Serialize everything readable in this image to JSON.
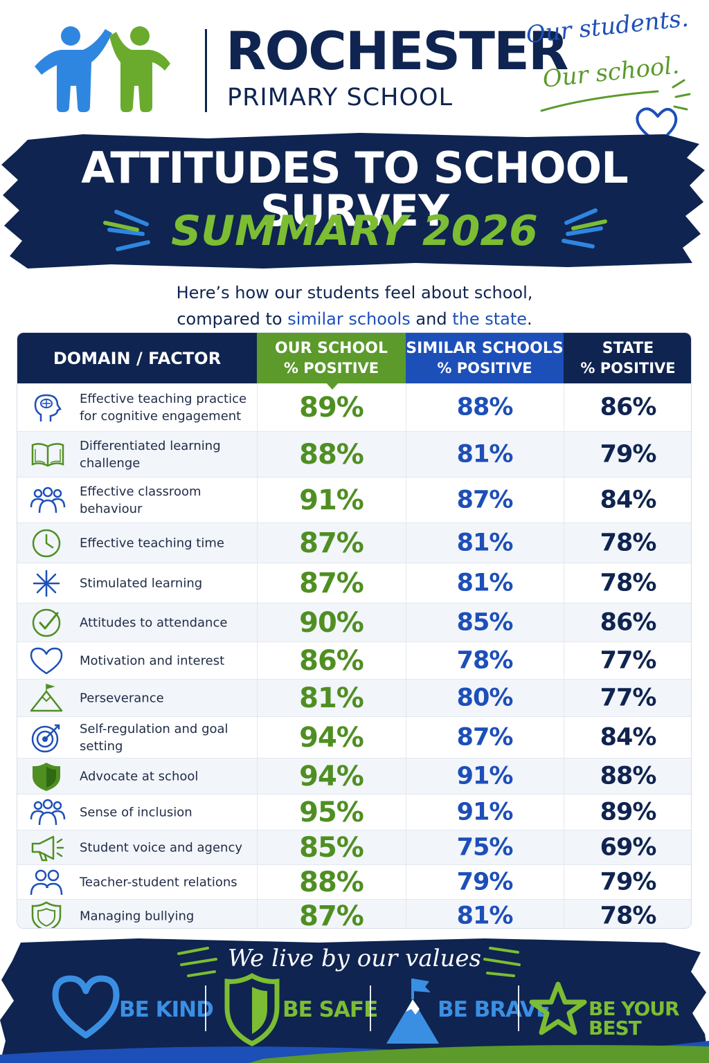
{
  "header": {
    "school_name": "ROCHESTER",
    "school_subtitle": "PRIMARY SCHOOL",
    "tagline_line1": "Our students.",
    "tagline_line2": "Our school."
  },
  "title": {
    "main": "ATTITUDES TO SCHOOL SURVEY",
    "sub": "SUMMARY 2026"
  },
  "intro": {
    "line1": "Here’s how our students feel about school,",
    "line2_prefix": "compared to ",
    "line2_hl1": "similar schools",
    "line2_mid": " and ",
    "line2_hl2": "the state",
    "line2_suffix": "."
  },
  "table": {
    "headers": {
      "domain": "DOMAIN / FACTOR",
      "ours_l1": "OUR SCHOOL",
      "ours_l2": "% POSITIVE",
      "similar_l1": "SIMILAR SCHOOLS",
      "similar_l2": "% POSITIVE",
      "state_l1": "STATE",
      "state_l2": "% POSITIVE"
    },
    "rows": [
      {
        "label": "Effective teaching practice for cognitive engagement",
        "icon": "head-brain-icon",
        "ours": "89%",
        "similar": "88%",
        "state": "86%"
      },
      {
        "label": "Differentiated learning challenge",
        "icon": "open-book-icon",
        "ours": "88%",
        "similar": "81%",
        "state": "79%"
      },
      {
        "label": "Effective classroom behaviour",
        "icon": "group-people-icon",
        "ours": "91%",
        "similar": "87%",
        "state": "84%"
      },
      {
        "label": "Effective teaching time",
        "icon": "clock-icon",
        "ours": "87%",
        "similar": "81%",
        "state": "78%"
      },
      {
        "label": "Stimulated learning",
        "icon": "sparkle-icon",
        "ours": "87%",
        "similar": "81%",
        "state": "78%"
      },
      {
        "label": "Attitudes to attendance",
        "icon": "check-circle-icon",
        "ours": "90%",
        "similar": "85%",
        "state": "86%"
      },
      {
        "label": "Motivation and interest",
        "icon": "heart-icon",
        "ours": "86%",
        "similar": "78%",
        "state": "77%"
      },
      {
        "label": "Perseverance",
        "icon": "mountain-flag-icon",
        "ours": "81%",
        "similar": "80%",
        "state": "77%"
      },
      {
        "label": "Self-regulation and goal setting",
        "icon": "target-icon",
        "ours": "94%",
        "similar": "87%",
        "state": "84%"
      },
      {
        "label": "Advocate at school",
        "icon": "shield-icon",
        "ours": "94%",
        "similar": "91%",
        "state": "88%"
      },
      {
        "label": "Sense of inclusion",
        "icon": "group-people-icon",
        "ours": "95%",
        "similar": "91%",
        "state": "89%"
      },
      {
        "label": "Student voice and agency",
        "icon": "megaphone-icon",
        "ours": "85%",
        "similar": "75%",
        "state": "69%"
      },
      {
        "label": "Teacher-student relations",
        "icon": "two-people-icon",
        "ours": "88%",
        "similar": "79%",
        "state": "79%"
      },
      {
        "label": "Managing bullying",
        "icon": "shield-outline-icon",
        "ours": "87%",
        "similar": "81%",
        "state": "78%"
      }
    ]
  },
  "values": {
    "title": "We live by our values",
    "items": [
      {
        "label": "BE KIND",
        "icon": "heart-icon",
        "color": "#3b8fe3"
      },
      {
        "label": "BE SAFE",
        "icon": "shield-icon",
        "color": "#7cbd33"
      },
      {
        "label": "BE BRAVE",
        "icon": "mountain-flag-icon",
        "color": "#3b8fe3"
      },
      {
        "label": "BE YOUR BEST",
        "icon": "star-icon",
        "color": "#7cbd33"
      }
    ]
  },
  "colors": {
    "navy": "#0f2450",
    "green": "#5b9a2b",
    "blue": "#1d4fb8",
    "light_blue": "#3b8fe3",
    "light_green": "#7cbd33"
  }
}
